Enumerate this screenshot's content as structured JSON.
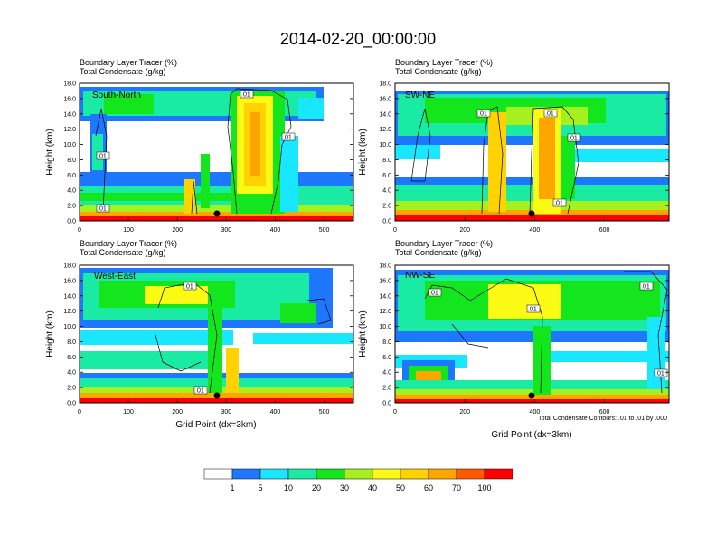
{
  "title": "2014-02-20_00:00:00",
  "panel_header": {
    "line1": "Boundary Layer Tracer   (%)",
    "line2": "Total Condensate   (g/kg)"
  },
  "y_axis_label": "Height (km)",
  "x_axis_label": "Grid Point (dx=3km)",
  "contour_note": "Total Condensate Contours: .01 to .01 by .000",
  "contour_tag": ".01",
  "colors": {
    "white": "#ffffff",
    "c1": "#1e78ff",
    "c5": "#19e6ff",
    "c10": "#19eba5",
    "c20": "#14e61e",
    "c30": "#a5f01e",
    "c40": "#fafa14",
    "c50": "#ffd200",
    "c60": "#ffa500",
    "c70": "#ff5a00",
    "c100": "#ff0000"
  },
  "colorbar": {
    "labels": [
      "1",
      "5",
      "10",
      "20",
      "30",
      "40",
      "50",
      "60",
      "70",
      "100"
    ]
  },
  "chart_data": [
    {
      "type": "heatmap",
      "panel": "South-North",
      "xlim": [
        0,
        560
      ],
      "ylim": [
        0,
        18
      ],
      "xticks": [
        "0",
        "100",
        "200",
        "300",
        "400",
        "500"
      ],
      "yticks": [
        "0.0",
        "2.0",
        "4.0",
        "6.0",
        "8.0",
        "10.0",
        "12.0",
        "14.0",
        "16.0",
        "18.0"
      ],
      "show_xlabel": false
    },
    {
      "type": "heatmap",
      "panel": "SW-NE",
      "xlim": [
        0,
        785
      ],
      "ylim": [
        0,
        18
      ],
      "xticks": [
        "0",
        "200",
        "400",
        "600"
      ],
      "yticks": [
        "0.0",
        "2.0",
        "4.0",
        "6.0",
        "8.0",
        "10.0",
        "12.0",
        "14.0",
        "16.0",
        "18.0"
      ],
      "show_xlabel": false
    },
    {
      "type": "heatmap",
      "panel": "West-East",
      "xlim": [
        0,
        560
      ],
      "ylim": [
        0,
        18
      ],
      "xticks": [
        "0",
        "100",
        "200",
        "300",
        "400",
        "500"
      ],
      "yticks": [
        "0.0",
        "2.0",
        "4.0",
        "6.0",
        "8.0",
        "10.0",
        "12.0",
        "14.0",
        "16.0",
        "18.0"
      ],
      "show_xlabel": true
    },
    {
      "type": "heatmap",
      "panel": "NW-SE",
      "xlim": [
        0,
        785
      ],
      "ylim": [
        0,
        18
      ],
      "xticks": [
        "0",
        "200",
        "400",
        "600"
      ],
      "yticks": [
        "0.0",
        "2.0",
        "4.0",
        "6.0",
        "8.0",
        "10.0",
        "12.0",
        "14.0",
        "16.0",
        "18.0"
      ],
      "show_xlabel": true
    }
  ]
}
